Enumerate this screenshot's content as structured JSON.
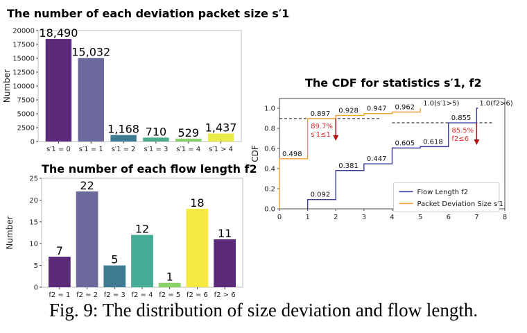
{
  "caption": "Fig. 9: The distribution of size deviation and flow length.",
  "chart_data": [
    {
      "type": "bar",
      "title": "The number of each deviation packet size s′1",
      "ylabel": "Number",
      "categories": [
        "s′1 = 0",
        "s′1 = 1",
        "s′1 = 2",
        "s′1 = 3",
        "s′1 = 4",
        "s′1 > 4"
      ],
      "values": [
        18490,
        15032,
        1168,
        710,
        529,
        1437
      ],
      "data_labels": [
        "18,490",
        "15,032",
        "1,168",
        "710",
        "529",
        "1,437"
      ],
      "colors": [
        "#5b2a78",
        "#6c6a9c",
        "#3e7b93",
        "#4fab8e",
        "#8bd16a",
        "#e9e94a"
      ],
      "yticks": [
        "0",
        "2500",
        "5000",
        "7500",
        "10000",
        "12500",
        "15000",
        "17500",
        "20000"
      ],
      "ylim": [
        0,
        20000
      ]
    },
    {
      "type": "bar",
      "title": "The number of each flow length f2",
      "ylabel": "Number",
      "categories": [
        "f2 = 1",
        "f2 = 2",
        "f2 = 3",
        "f2 = 4",
        "f2 = 5",
        "f2 = 6",
        "f2 > 6"
      ],
      "values": [
        7,
        22,
        5,
        12,
        1,
        18,
        11
      ],
      "data_labels": [
        "7",
        "22",
        "5",
        "12",
        "1",
        "18",
        "11"
      ],
      "colors": [
        "#5b2a78",
        "#6c6a9c",
        "#3e7b93",
        "#45ad97",
        "#8bd16a",
        "#f5e942",
        "#5b2a78"
      ],
      "yticks": [
        "0",
        "5",
        "10",
        "15",
        "20",
        "25"
      ],
      "ylim": [
        0,
        25
      ]
    },
    {
      "type": "line",
      "title": "The CDF for statistics s′1, f2",
      "ylabel": "CDF",
      "xticks": [
        "0",
        "1",
        "2",
        "3",
        "4",
        "5",
        "6",
        "7",
        "8"
      ],
      "yticks": [
        "0.0",
        "0.2",
        "0.4",
        "0.6",
        "0.8",
        "1.0"
      ],
      "xlim": [
        0,
        8
      ],
      "ylim": [
        0,
        1.0
      ],
      "legend_position": "lower right",
      "series": [
        {
          "name": "Flow Length f2",
          "color": "#3a3a9e",
          "points": [
            [
              1,
              0.092
            ],
            [
              2,
              0.381
            ],
            [
              3,
              0.447
            ],
            [
              4,
              0.605
            ],
            [
              5,
              0.618
            ],
            [
              6,
              0.855
            ],
            [
              7,
              1.0
            ]
          ],
          "labels": [
            "0.092",
            "0.381",
            "0.447",
            "0.605",
            "0.618",
            "0.855",
            "1.0(f2>6)"
          ]
        },
        {
          "name": "Packet Deviation Size s′1",
          "color": "#f0a030",
          "points": [
            [
              0,
              0.498
            ],
            [
              1,
              0.897
            ],
            [
              2,
              0.928
            ],
            [
              3,
              0.947
            ],
            [
              4,
              0.962
            ],
            [
              5,
              1.0
            ]
          ],
          "labels": [
            "0.498",
            "0.897",
            "0.928",
            "0.947",
            "0.962",
            "1.0(s′1>5)"
          ]
        }
      ],
      "annotations": [
        {
          "text_line1": "89.7%",
          "text_line2": "s′1≤1",
          "color": "#e0282c",
          "at_x": 2,
          "at_y": 0.897
        },
        {
          "text_line1": "85.5%",
          "text_line2": "f2≤6",
          "color": "#e0282c",
          "at_x": 7,
          "at_y": 0.855
        }
      ]
    }
  ]
}
